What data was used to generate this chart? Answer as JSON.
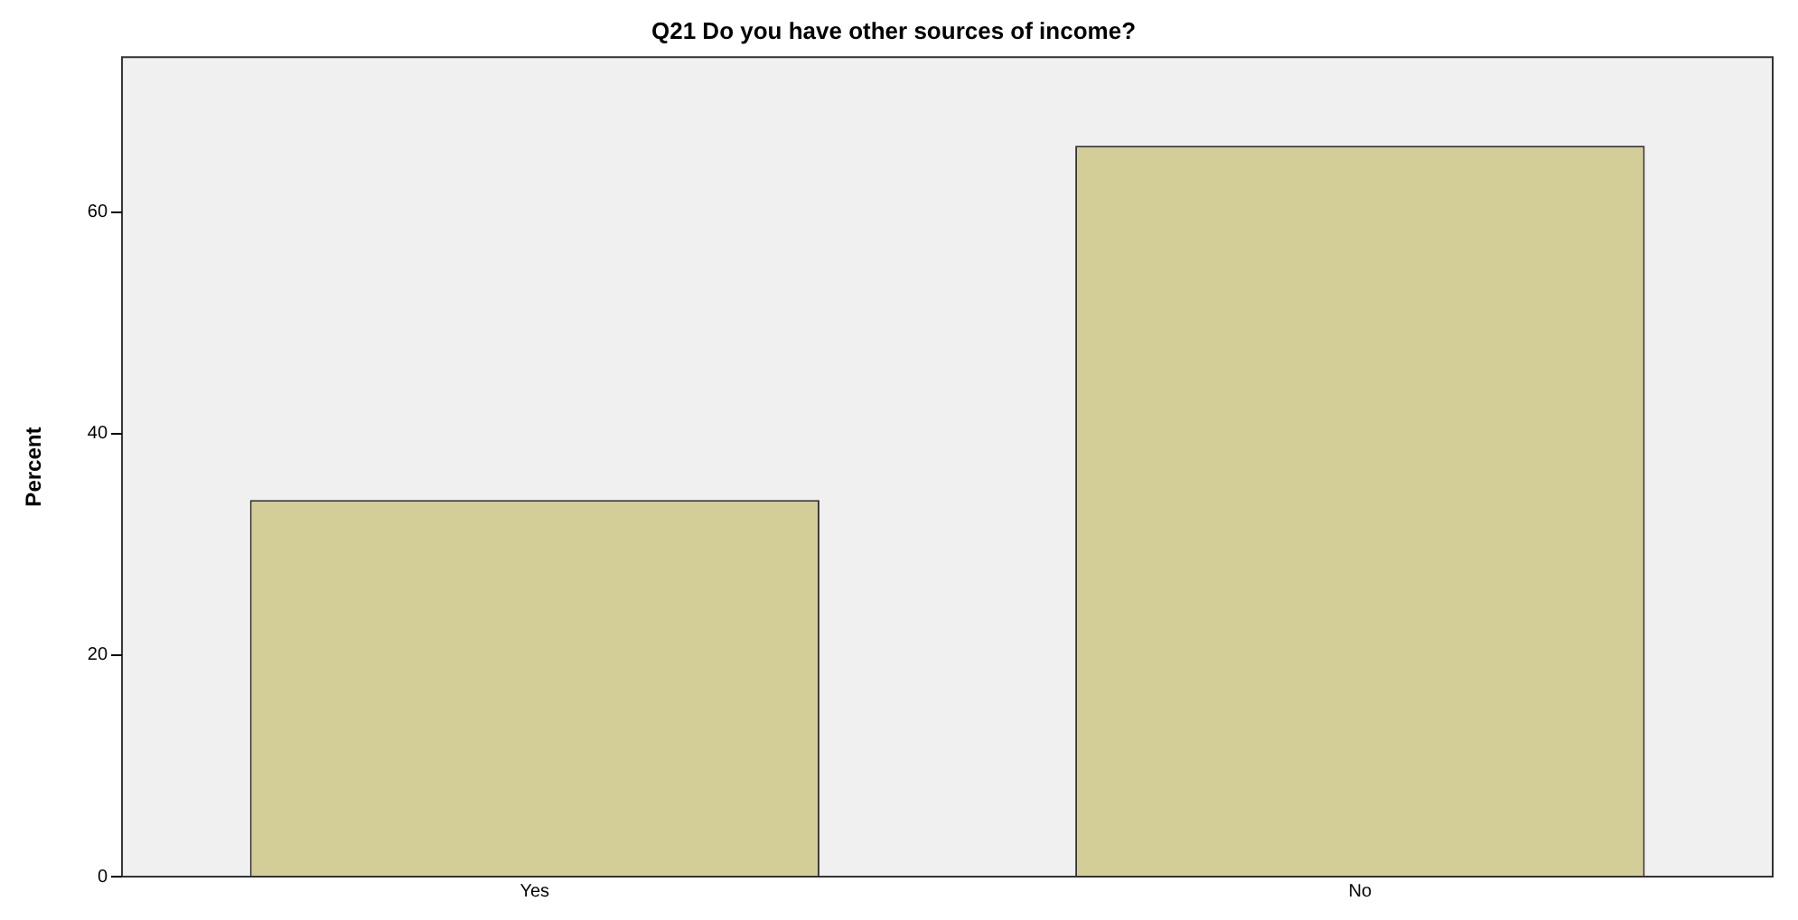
{
  "chart_data": {
    "type": "bar",
    "title": "Q21 Do you have other sources of income?",
    "ylabel": "Percent",
    "categories": [
      "Yes",
      "No"
    ],
    "values": [
      34,
      66
    ],
    "color": "#d3ce97",
    "ylim": [
      0,
      74
    ],
    "yticks": [
      0,
      20,
      40,
      60
    ],
    "grid": false,
    "legend": false
  }
}
